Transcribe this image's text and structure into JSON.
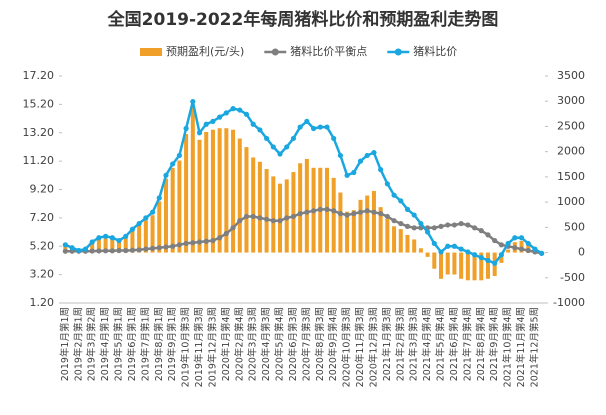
{
  "chart_data": {
    "type": "combo",
    "title": "全国2019-2022年每周猪料比价和预期盈利走势图",
    "categories": [
      "2019年1月第1周",
      null,
      "2019年2月第1周",
      null,
      "2019年3月第2周",
      null,
      "2019年4月第1周",
      null,
      "2019年5月第1周",
      null,
      "2019年6月第1周",
      null,
      "2019年7月第1周",
      null,
      "2019年8月第1周",
      null,
      "2019年9月第1周",
      null,
      "2019年10月第3周",
      null,
      "2019年11月第3周",
      null,
      "2019年12月第3周",
      null,
      "2020年1月第4周",
      null,
      "2020年2月第4周",
      null,
      "2020年3月第3周",
      null,
      "2020年4月第3周",
      null,
      "2020年5月第4周",
      null,
      "2020年6月第3周",
      null,
      "2020年7月第3周",
      null,
      "2020年8月第3周",
      null,
      "2020年9月第4周",
      null,
      "2020年10月第3周",
      null,
      "2020年11月第3周",
      null,
      "2020年12月第3周",
      null,
      "2021年1月第3周",
      null,
      "2021年2月第3周",
      null,
      "2021年3月第3周",
      null,
      "2021年4月第4周",
      null,
      "2021年5月第4周",
      null,
      "2021年6月第4周",
      null,
      "2021年7月第4周",
      null,
      "2021年8月第4周",
      null,
      "2021年9月第4周",
      null,
      "2021年10月第4周",
      null,
      "2021年11月第4周",
      null,
      "2021年12月第5周",
      null
    ],
    "series": [
      {
        "name": "预期盈利(元/头)",
        "type": "bar",
        "axis": "y2",
        "color": "#f0a028",
        "values": [
          130,
          70,
          15,
          45,
          185,
          270,
          295,
          265,
          205,
          290,
          430,
          535,
          640,
          740,
          1015,
          1465,
          1680,
          1825,
          2350,
          2885,
          2235,
          2390,
          2435,
          2465,
          2465,
          2435,
          2260,
          2090,
          1885,
          1800,
          1655,
          1510,
          1365,
          1450,
          1595,
          1770,
          1855,
          1680,
          1680,
          1680,
          1480,
          1190,
          810,
          840,
          1045,
          1130,
          1220,
          900,
          665,
          520,
          465,
          350,
          260,
          85,
          -85,
          -320,
          -520,
          -435,
          -435,
          -520,
          -550,
          -550,
          -550,
          -520,
          -465,
          -205,
          60,
          205,
          230,
          145,
          60,
          0
        ]
      },
      {
        "name": "猪料比价平衡点",
        "type": "line",
        "color": "#7f7f7f",
        "values": [
          4.85,
          4.85,
          4.85,
          4.85,
          4.86,
          4.87,
          4.88,
          4.88,
          4.9,
          4.9,
          4.92,
          4.95,
          5.0,
          5.05,
          5.1,
          5.15,
          5.2,
          5.3,
          5.4,
          5.45,
          5.5,
          5.55,
          5.6,
          5.8,
          6.1,
          6.5,
          7.0,
          7.3,
          7.3,
          7.2,
          7.1,
          7.0,
          7.0,
          7.2,
          7.3,
          7.5,
          7.6,
          7.7,
          7.8,
          7.8,
          7.7,
          7.5,
          7.4,
          7.5,
          7.6,
          7.7,
          7.6,
          7.5,
          7.3,
          7.0,
          6.8,
          6.6,
          6.5,
          6.5,
          6.5,
          6.5,
          6.6,
          6.7,
          6.7,
          6.8,
          6.7,
          6.5,
          6.3,
          6.0,
          5.6,
          5.3,
          5.2,
          5.1,
          5.0,
          4.9,
          4.8,
          4.7
        ]
      },
      {
        "name": "猪料比价",
        "type": "line",
        "color": "#1aa7e0",
        "values": [
          5.3,
          5.1,
          4.9,
          5.0,
          5.5,
          5.8,
          5.9,
          5.8,
          5.6,
          5.9,
          6.4,
          6.8,
          7.2,
          7.6,
          8.6,
          10.2,
          11.0,
          11.6,
          13.5,
          15.4,
          13.2,
          13.8,
          14.0,
          14.3,
          14.6,
          14.9,
          14.8,
          14.5,
          13.8,
          13.4,
          12.8,
          12.2,
          11.7,
          12.2,
          12.8,
          13.6,
          14.0,
          13.5,
          13.6,
          13.6,
          12.8,
          11.6,
          10.2,
          10.4,
          11.2,
          11.6,
          11.8,
          10.6,
          9.6,
          8.8,
          8.4,
          7.8,
          7.4,
          6.8,
          6.2,
          5.4,
          4.8,
          5.2,
          5.2,
          5.0,
          4.8,
          4.6,
          4.4,
          4.2,
          4.0,
          4.6,
          5.4,
          5.8,
          5.8,
          5.4,
          5.0,
          4.7
        ]
      }
    ],
    "ylim": [
      1.2,
      17.2
    ],
    "yticks": [
      {
        "value": 1.2,
        "label": "1.20"
      },
      {
        "value": 3.2,
        "label": "3.20"
      },
      {
        "value": 5.2,
        "label": "5.20"
      },
      {
        "value": 7.2,
        "label": "7.20"
      },
      {
        "value": 9.2,
        "label": "9.20"
      },
      {
        "value": 11.2,
        "label": "11.20"
      },
      {
        "value": 13.2,
        "label": "13.20"
      },
      {
        "value": 15.2,
        "label": "15.20"
      },
      {
        "value": 17.2,
        "label": "17.20"
      }
    ],
    "y2lim": [
      -1000,
      3500
    ],
    "y2ticks": [
      -1000,
      -500,
      0,
      500,
      1000,
      1500,
      2000,
      2500,
      3000,
      3500
    ]
  }
}
